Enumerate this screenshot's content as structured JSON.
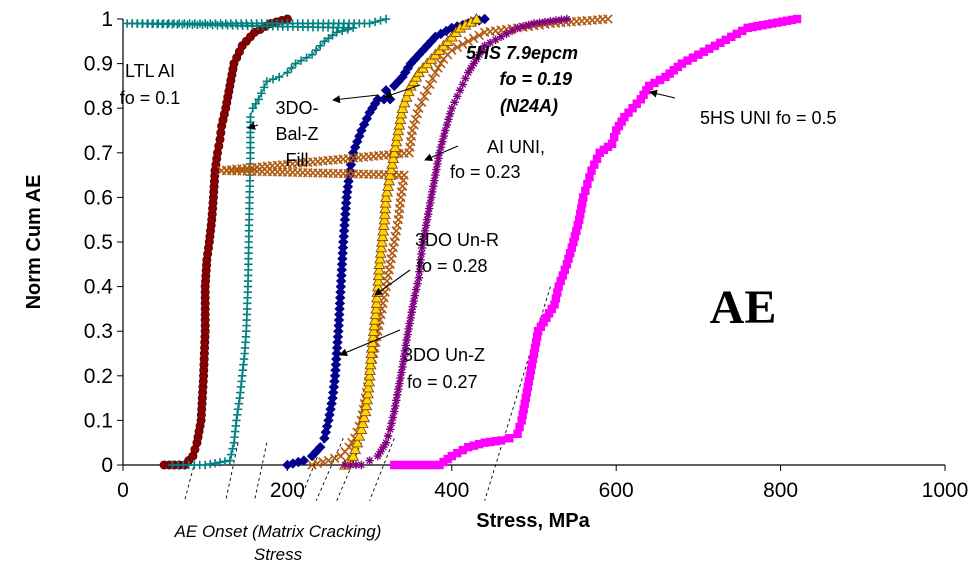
{
  "chart_data": {
    "type": "scatter",
    "title": "",
    "xlabel": "Stress, MPa",
    "ylabel": "Norm Cum AE",
    "xlim": [
      0,
      1000
    ],
    "ylim": [
      0,
      1
    ],
    "x_ticks": [
      "0",
      "200",
      "400",
      "600",
      "800",
      "1000"
    ],
    "y_ticks": [
      "0",
      "0.1",
      "0.2",
      "0.3",
      "0.4",
      "0.5",
      "0.6",
      "0.7",
      "0.8",
      "0.9",
      "1"
    ],
    "grid": false,
    "big_label": "AE",
    "onset_label": [
      "AE Onset (Matrix Cracking)",
      "Stress"
    ],
    "onset_stress_values": [
      75,
      125,
      160,
      215,
      235,
      260,
      300,
      440
    ],
    "series": [
      {
        "name": "LTL AI fo = 0.1",
        "color": "#8b0000",
        "marker": "circle",
        "points": [
          [
            50,
            0
          ],
          [
            75,
            0
          ],
          [
            85,
            0.02
          ],
          [
            90,
            0.05
          ],
          [
            95,
            0.1
          ],
          [
            98,
            0.2
          ],
          [
            100,
            0.3
          ],
          [
            100,
            0.4
          ],
          [
            102,
            0.46
          ],
          [
            105,
            0.5
          ],
          [
            108,
            0.55
          ],
          [
            110,
            0.6
          ],
          [
            112,
            0.66
          ],
          [
            115,
            0.7
          ],
          [
            118,
            0.73
          ],
          [
            120,
            0.76
          ],
          [
            125,
            0.8
          ],
          [
            130,
            0.85
          ],
          [
            135,
            0.9
          ],
          [
            145,
            0.94
          ],
          [
            160,
            0.97
          ],
          [
            180,
            0.99
          ],
          [
            200,
            1.0
          ]
        ]
      },
      {
        "name": "3DO-Bal-Z Fill",
        "color": "#008080",
        "marker": "plus",
        "points": [
          [
            60,
            0
          ],
          [
            100,
            0
          ],
          [
            130,
            0.01
          ],
          [
            135,
            0.05
          ],
          [
            138,
            0.1
          ],
          [
            142,
            0.15
          ],
          [
            145,
            0.2
          ],
          [
            148,
            0.25
          ],
          [
            150,
            0.3
          ],
          [
            152,
            0.4
          ],
          [
            153,
            0.5
          ],
          [
            154,
            0.6
          ],
          [
            155,
            0.7
          ],
          [
            155,
            0.78
          ],
          [
            158,
            0.8
          ],
          [
            165,
            0.82
          ],
          [
            175,
            0.86
          ],
          [
            190,
            0.87
          ],
          [
            200,
            0.88
          ],
          [
            210,
            0.9
          ],
          [
            230,
            0.92
          ],
          [
            245,
            0.95
          ],
          [
            260,
            0.97
          ],
          [
            280,
            0.98
          ],
          [
            300,
            0.99
          ],
          [
            320,
            1.0
          ],
          [
            5,
            0.99
          ],
          [
            100,
            0.99
          ]
        ]
      },
      {
        "name": "5HS 7.9epcm fo = 0.19 (N24A)",
        "color": "#00008b",
        "marker": "diamond",
        "points": [
          [
            200,
            0
          ],
          [
            220,
            0.01
          ],
          [
            230,
            0.02
          ],
          [
            240,
            0.04
          ],
          [
            245,
            0.06
          ],
          [
            250,
            0.1
          ],
          [
            255,
            0.15
          ],
          [
            258,
            0.2
          ],
          [
            262,
            0.3
          ],
          [
            265,
            0.4
          ],
          [
            268,
            0.5
          ],
          [
            272,
            0.6
          ],
          [
            276,
            0.66
          ],
          [
            280,
            0.7
          ],
          [
            290,
            0.75
          ],
          [
            300,
            0.79
          ],
          [
            310,
            0.82
          ],
          [
            320,
            0.84
          ],
          [
            325,
            0.82
          ],
          [
            330,
            0.85
          ],
          [
            340,
            0.87
          ],
          [
            350,
            0.9
          ],
          [
            360,
            0.92
          ],
          [
            370,
            0.94
          ],
          [
            380,
            0.96
          ],
          [
            400,
            0.98
          ],
          [
            420,
            0.99
          ],
          [
            440,
            1.0
          ]
        ]
      },
      {
        "name": "3DO Un-R fo = 0.28",
        "color": "#b05a10",
        "marker": "x",
        "points": [
          [
            120,
            0.66
          ],
          [
            230,
            0
          ],
          [
            250,
            0.01
          ],
          [
            265,
            0.02
          ],
          [
            275,
            0.04
          ],
          [
            282,
            0.06
          ],
          [
            290,
            0.1
          ],
          [
            295,
            0.15
          ],
          [
            300,
            0.2
          ],
          [
            305,
            0.25
          ],
          [
            310,
            0.3
          ],
          [
            315,
            0.35
          ],
          [
            320,
            0.4
          ],
          [
            325,
            0.45
          ],
          [
            330,
            0.5
          ],
          [
            335,
            0.55
          ],
          [
            338,
            0.6
          ],
          [
            342,
            0.65
          ],
          [
            348,
            0.7
          ],
          [
            352,
            0.75
          ],
          [
            360,
            0.8
          ],
          [
            370,
            0.84
          ],
          [
            380,
            0.88
          ],
          [
            390,
            0.91
          ],
          [
            400,
            0.93
          ],
          [
            420,
            0.95
          ],
          [
            440,
            0.97
          ],
          [
            480,
            0.98
          ],
          [
            520,
            0.99
          ],
          [
            590,
            1.0
          ]
        ]
      },
      {
        "name": "3DO Un-Z fo = 0.27",
        "color": "#ffd700",
        "marker": "triangle",
        "points": [
          [
            270,
            0
          ],
          [
            280,
            0.02
          ],
          [
            285,
            0.05
          ],
          [
            290,
            0.08
          ],
          [
            295,
            0.12
          ],
          [
            298,
            0.16
          ],
          [
            300,
            0.2
          ],
          [
            302,
            0.25
          ],
          [
            305,
            0.3
          ],
          [
            308,
            0.35
          ],
          [
            310,
            0.4
          ],
          [
            312,
            0.45
          ],
          [
            315,
            0.5
          ],
          [
            318,
            0.55
          ],
          [
            320,
            0.6
          ],
          [
            325,
            0.65
          ],
          [
            330,
            0.7
          ],
          [
            335,
            0.75
          ],
          [
            340,
            0.8
          ],
          [
            350,
            0.85
          ],
          [
            360,
            0.88
          ],
          [
            375,
            0.91
          ],
          [
            390,
            0.94
          ],
          [
            400,
            0.96
          ],
          [
            410,
            0.98
          ],
          [
            430,
            1.0
          ]
        ]
      },
      {
        "name": "AI UNI, fo = 0.23",
        "color": "#800080",
        "marker": "star",
        "points": [
          [
            270,
            0
          ],
          [
            290,
            0
          ],
          [
            300,
            0.01
          ],
          [
            310,
            0.02
          ],
          [
            320,
            0.05
          ],
          [
            325,
            0.08
          ],
          [
            330,
            0.12
          ],
          [
            335,
            0.17
          ],
          [
            340,
            0.22
          ],
          [
            345,
            0.28
          ],
          [
            350,
            0.33
          ],
          [
            355,
            0.38
          ],
          [
            360,
            0.42
          ],
          [
            362,
            0.46
          ],
          [
            365,
            0.5
          ],
          [
            370,
            0.55
          ],
          [
            375,
            0.6
          ],
          [
            380,
            0.65
          ],
          [
            385,
            0.7
          ],
          [
            392,
            0.75
          ],
          [
            400,
            0.8
          ],
          [
            410,
            0.84
          ],
          [
            420,
            0.88
          ],
          [
            430,
            0.91
          ],
          [
            440,
            0.94
          ],
          [
            460,
            0.96
          ],
          [
            480,
            0.98
          ],
          [
            500,
            0.99
          ],
          [
            520,
            0.995
          ],
          [
            540,
            1.0
          ]
        ]
      },
      {
        "name": "5HS UNI fo = 0.5",
        "color": "#ff00ff",
        "marker": "square",
        "points": [
          [
            330,
            0
          ],
          [
            385,
            0
          ],
          [
            400,
            0.02
          ],
          [
            420,
            0.04
          ],
          [
            440,
            0.05
          ],
          [
            460,
            0.055
          ],
          [
            470,
            0.06
          ],
          [
            480,
            0.07
          ],
          [
            485,
            0.1
          ],
          [
            490,
            0.15
          ],
          [
            495,
            0.2
          ],
          [
            500,
            0.25
          ],
          [
            505,
            0.3
          ],
          [
            515,
            0.33
          ],
          [
            525,
            0.36
          ],
          [
            530,
            0.4
          ],
          [
            540,
            0.45
          ],
          [
            548,
            0.5
          ],
          [
            555,
            0.55
          ],
          [
            560,
            0.6
          ],
          [
            565,
            0.63
          ],
          [
            570,
            0.66
          ],
          [
            580,
            0.7
          ],
          [
            595,
            0.72
          ],
          [
            600,
            0.75
          ],
          [
            610,
            0.78
          ],
          [
            620,
            0.8
          ],
          [
            630,
            0.82
          ],
          [
            640,
            0.85
          ],
          [
            660,
            0.87
          ],
          [
            680,
            0.9
          ],
          [
            700,
            0.92
          ],
          [
            720,
            0.94
          ],
          [
            740,
            0.96
          ],
          [
            760,
            0.98
          ],
          [
            790,
            0.99
          ],
          [
            820,
            1.0
          ]
        ]
      }
    ]
  },
  "annotations": {
    "ltl_ai": [
      "LTL AI",
      "fo = 0.1"
    ],
    "bal_z": [
      "3DO-",
      "Bal-Z",
      "Fill"
    ],
    "n24a": [
      "5HS 7.9epcm",
      "fo = 0.19",
      "(N24A)"
    ],
    "ai_uni": [
      "AI UNI,",
      "fo = 0.23"
    ],
    "un_r": [
      "3DO Un-R",
      "fo = 0.28"
    ],
    "un_z": [
      "3DO Un-Z",
      "fo = 0.27"
    ],
    "hs_uni": "5HS UNI fo = 0.5"
  }
}
